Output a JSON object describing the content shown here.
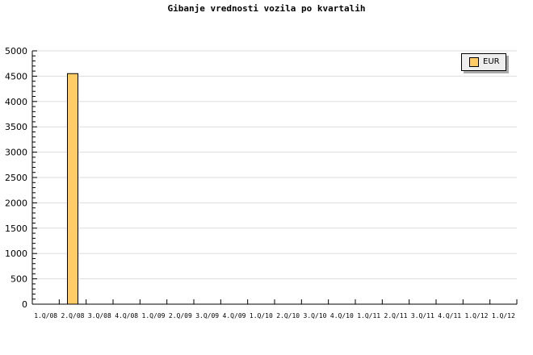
{
  "chart_data": {
    "type": "bar",
    "title": "Gibanje vrednosti vozila po kvartalih",
    "categories": [
      "1.Q/08",
      "2.Q/08",
      "3.Q/08",
      "4.Q/08",
      "1.Q/09",
      "2.Q/09",
      "3.Q/09",
      "4.Q/09",
      "1.Q/10",
      "2.Q/10",
      "3.Q/10",
      "4.Q/10",
      "1.Q/11",
      "2.Q/11",
      "3.Q/11",
      "4.Q/11",
      "1.Q/12",
      "1.Q/12"
    ],
    "series": [
      {
        "name": "EUR",
        "values": [
          0,
          4550,
          0,
          0,
          0,
          0,
          0,
          0,
          0,
          0,
          0,
          0,
          0,
          0,
          0,
          0,
          0,
          0
        ],
        "color": "#ffcc66"
      }
    ],
    "ylim": [
      0,
      5000
    ],
    "yticks": [
      0,
      500,
      1000,
      1500,
      2000,
      2500,
      3000,
      3500,
      4000,
      4500,
      5000
    ],
    "grid": true,
    "legend": "top-right"
  }
}
